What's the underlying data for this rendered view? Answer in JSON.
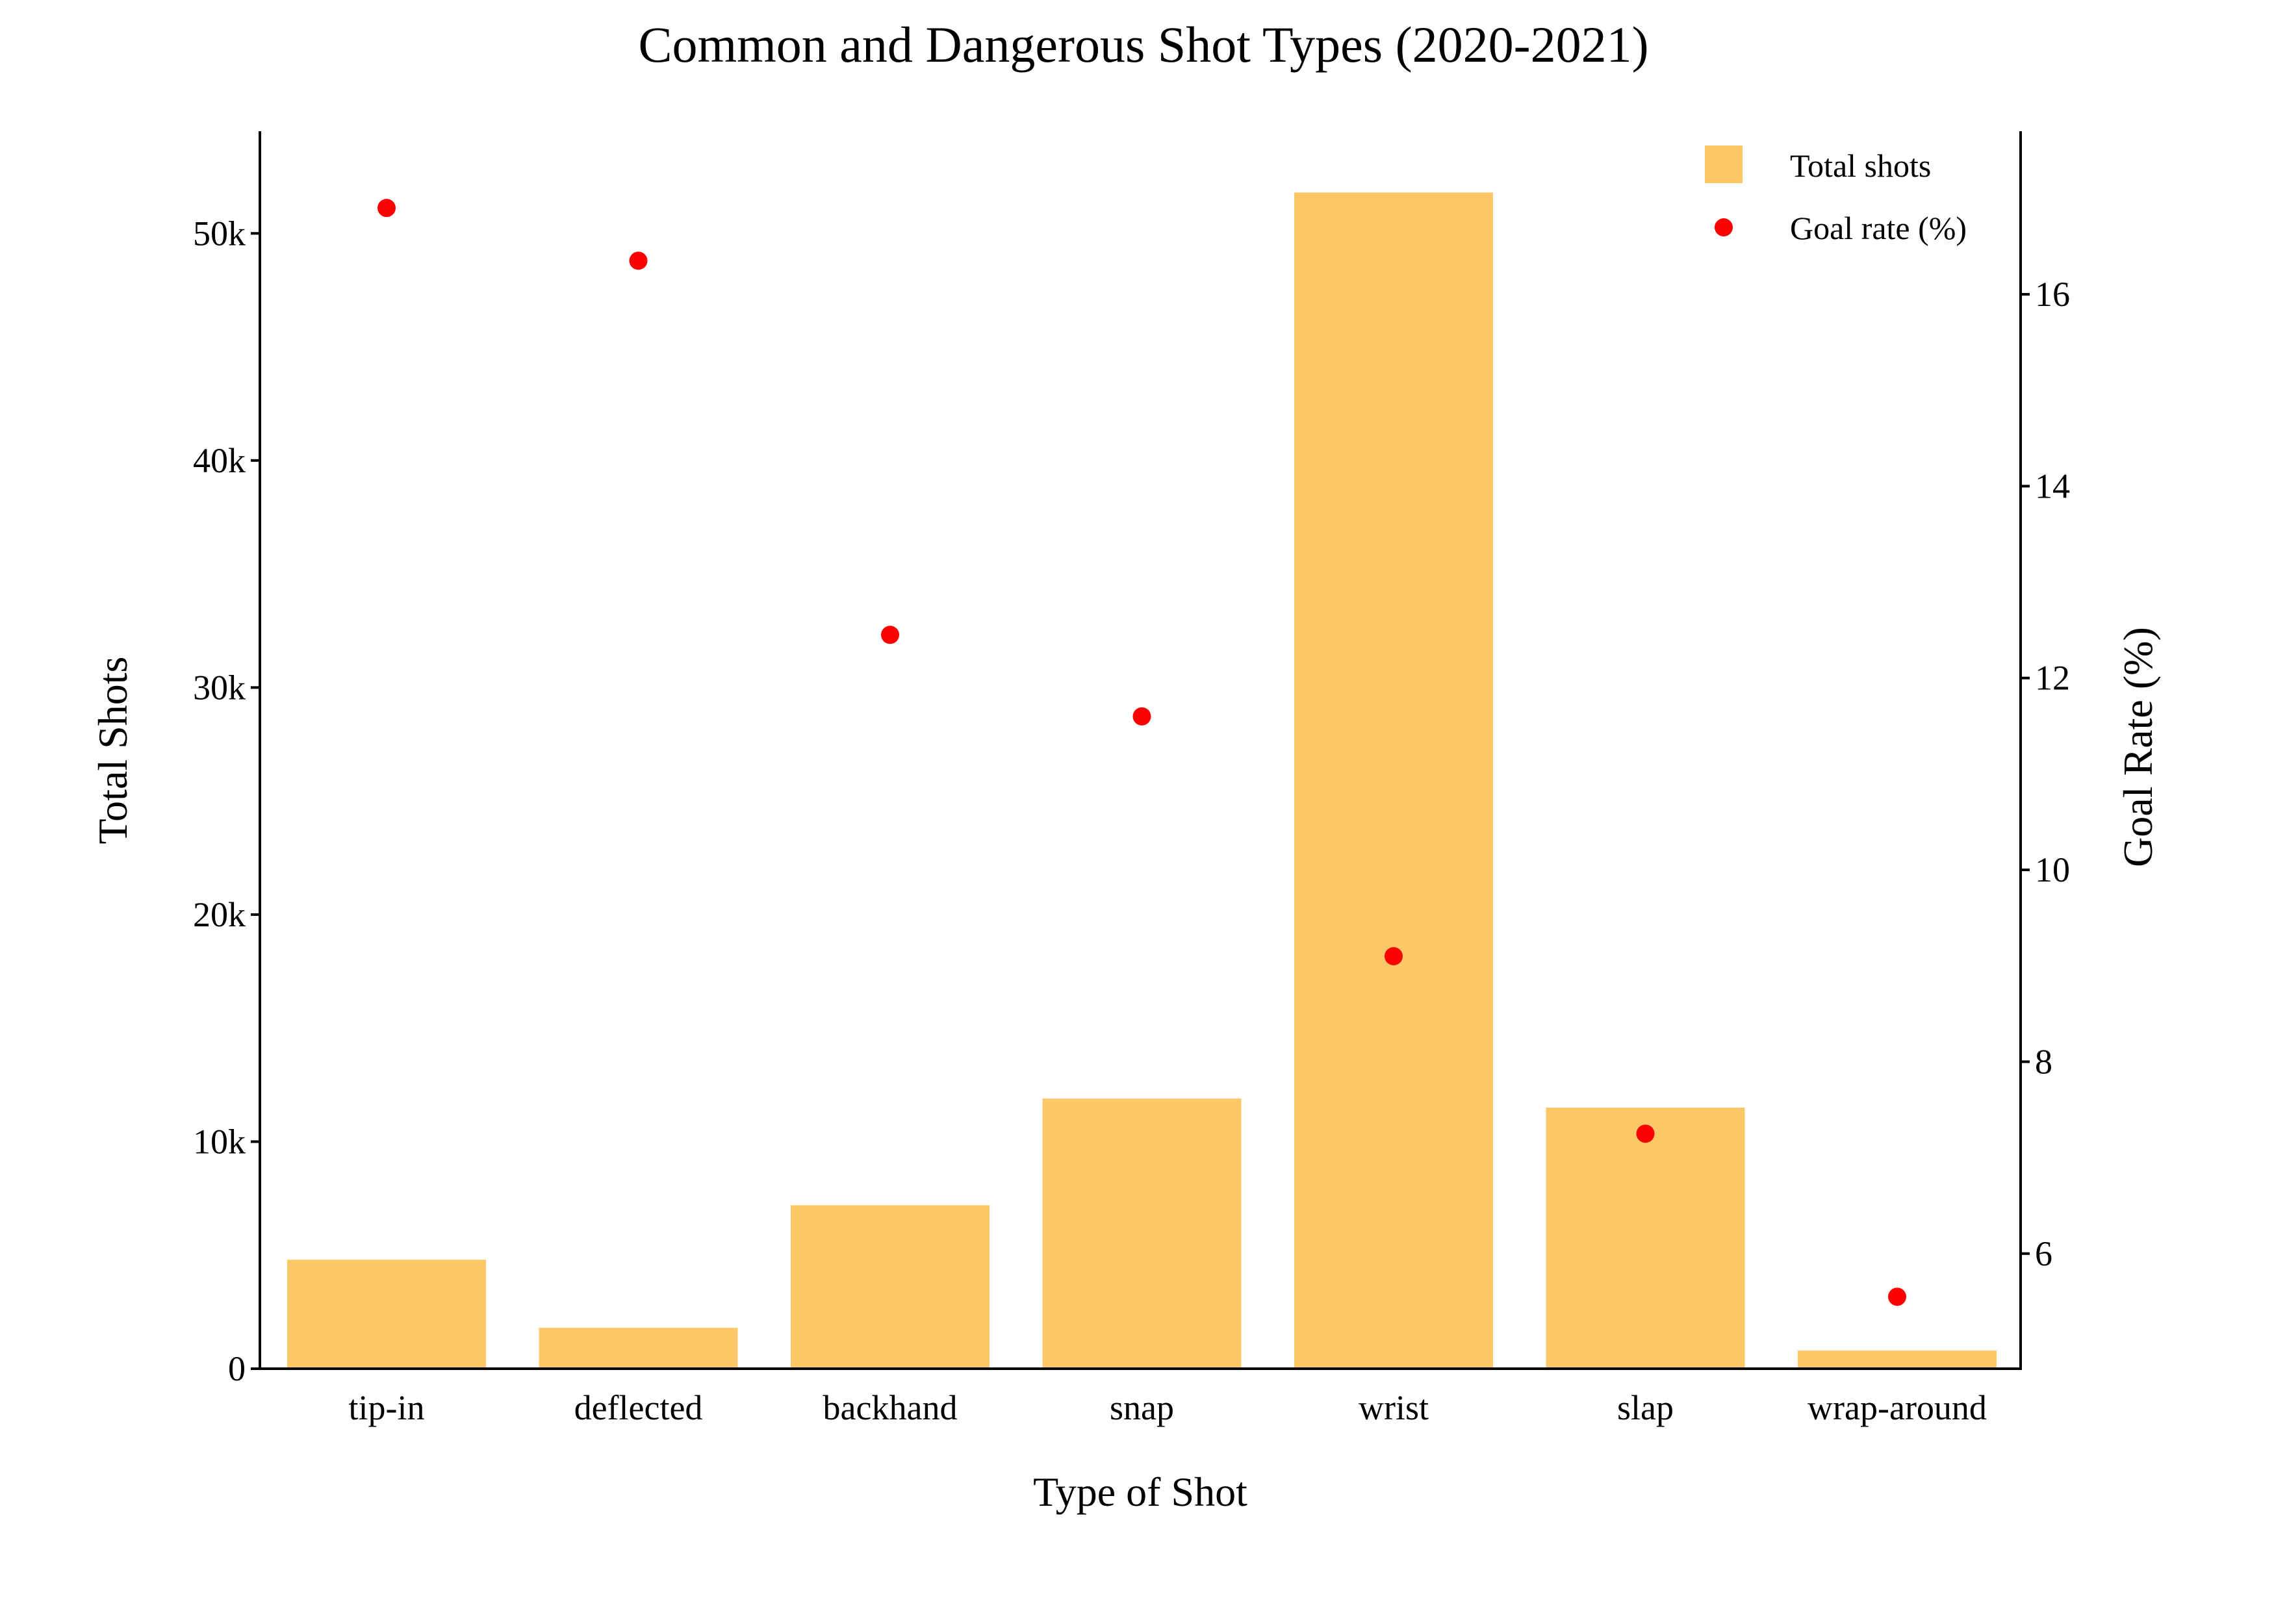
{
  "chart_data": {
    "type": "bar",
    "title": "Common and Dangerous Shot Types (2020-2021)",
    "xlabel": "Type of Shot",
    "ylabel": "Total Shots",
    "y2label": "Goal Rate (%)",
    "categories": [
      "tip-in",
      "deflected",
      "backhand",
      "snap",
      "wrist",
      "slap",
      "wrap-around"
    ],
    "series": [
      {
        "name": "Total shots",
        "type": "bar",
        "axis": "left",
        "color": "#FEC868",
        "values": [
          4800,
          1800,
          7200,
          11900,
          51800,
          11500,
          800
        ]
      },
      {
        "name": "Goal rate (%)",
        "type": "scatter",
        "axis": "right",
        "color": "#FF0000",
        "values": [
          16.9,
          16.35,
          12.45,
          11.6,
          9.1,
          7.25,
          5.55
        ]
      }
    ],
    "ylim": [
      0,
      54500
    ],
    "y2lim": [
      4.8,
      17.7
    ],
    "yticks": [
      0,
      10000,
      20000,
      30000,
      40000,
      50000
    ],
    "ytick_labels": [
      "0",
      "10k",
      "20k",
      "30k",
      "40k",
      "50k"
    ],
    "y2ticks": [
      6,
      8,
      10,
      12,
      14,
      16
    ],
    "y2tick_labels": [
      "6",
      "8",
      "10",
      "12",
      "14",
      "16"
    ],
    "grid": false,
    "legend": "top-right"
  }
}
